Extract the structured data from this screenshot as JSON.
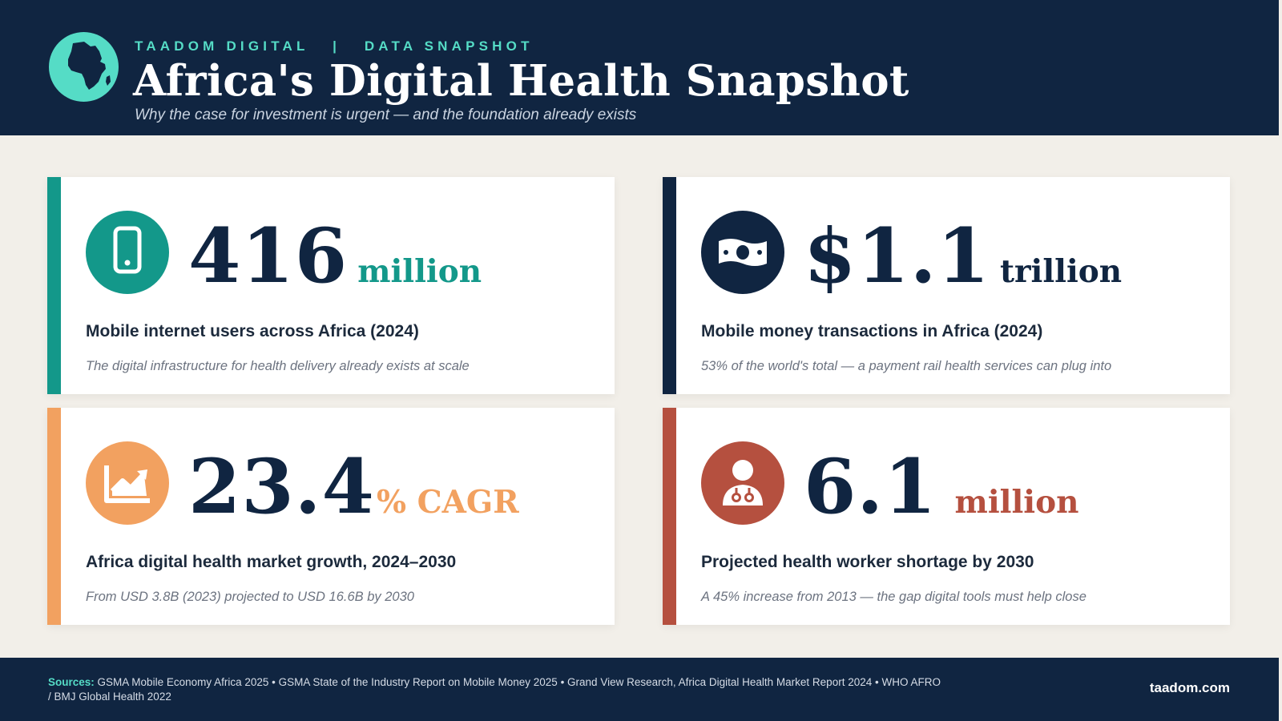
{
  "header": {
    "brand": "TAADOM DIGITAL",
    "separator": "|",
    "section": "DATA SNAPSHOT",
    "title": "Africa's Digital Health Snapshot",
    "subtitle": "Why the case for investment is urgent — and the foundation already exists",
    "logo_icon": "africa-globe-icon"
  },
  "colors": {
    "navy": "#102541",
    "teal": "#13988a",
    "mint": "#55dcc6",
    "orange": "#f2a160",
    "red": "#b5503f",
    "background": "#f2efe9"
  },
  "cards": [
    {
      "icon": "mobile-phone-icon",
      "value": "416",
      "unit": "million",
      "label": "Mobile internet users across Africa (2024)",
      "note": "The digital infrastructure for health delivery already exists at scale",
      "accent": "#13988a"
    },
    {
      "icon": "banknote-icon",
      "value": "$1.1",
      "unit": "trillion",
      "label": "Mobile money transactions in Africa (2024)",
      "note": "53% of the world's total — a payment rail health services can plug into",
      "accent": "#102541"
    },
    {
      "icon": "growth-chart-icon",
      "value": "23.4",
      "unit": "% CAGR",
      "label": "Africa digital health market growth, 2024–2030",
      "note": "From USD 3.8B (2023) projected to USD 16.6B by 2030",
      "accent": "#f2a160"
    },
    {
      "icon": "doctor-stethoscope-icon",
      "value": "6.1",
      "unit": "million",
      "label": "Projected health worker shortage by 2030",
      "note": "A 45% increase from 2013 — the gap digital tools must help close",
      "accent": "#b5503f"
    }
  ],
  "footer": {
    "sources_label": "Sources:",
    "sources_text": "GSMA Mobile Economy Africa 2025  •  GSMA State of the Industry Report on Mobile Money 2025  •  Grand View Research, Africa Digital Health Market Report 2024  •  WHO AFRO / BMJ Global Health 2022",
    "site": "taadom.com"
  }
}
